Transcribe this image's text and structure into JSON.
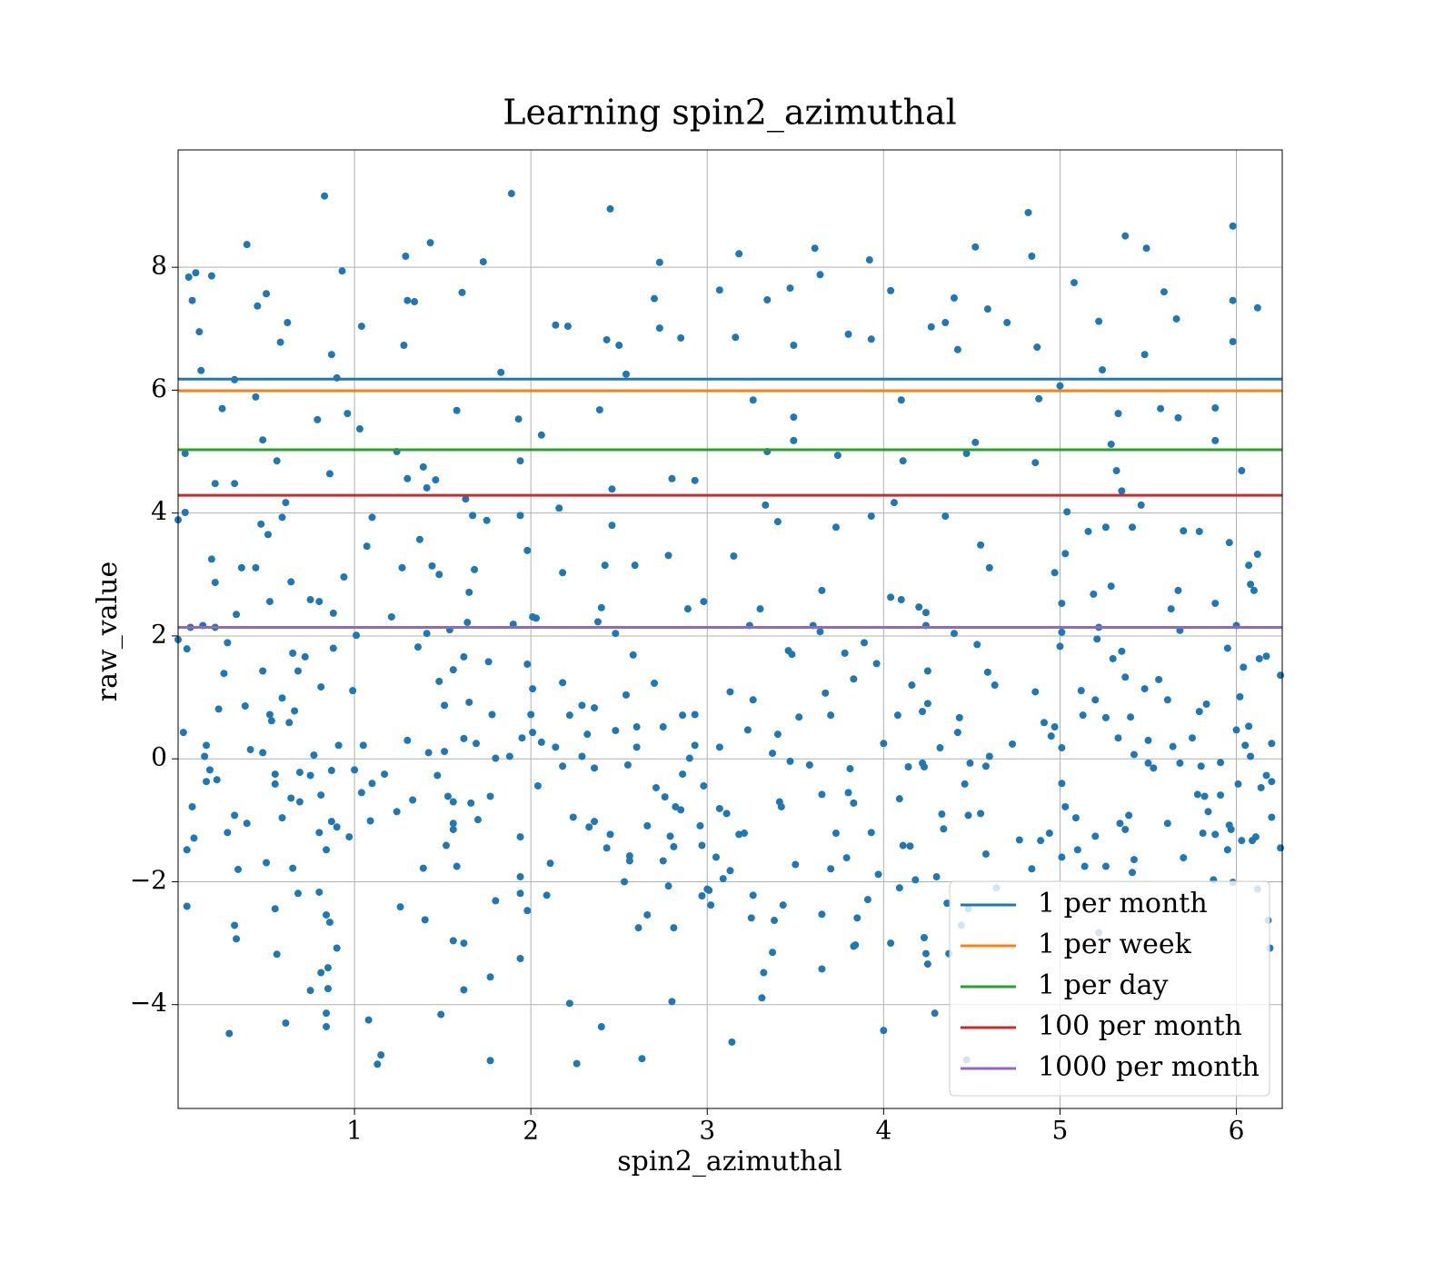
{
  "chart_data": {
    "type": "scatter",
    "title": "Learning spin2_azimuthal",
    "x_label": "spin2_azimuthal",
    "y_label": "raw_value",
    "xlim": [
      0,
      6.26
    ],
    "ylim": [
      -5.69,
      9.91
    ],
    "xticks": [
      1,
      2,
      3,
      4,
      5,
      6
    ],
    "yticks": [
      {
        "value": -4,
        "label": "−4"
      },
      {
        "value": -2,
        "label": "−2"
      },
      0,
      2,
      4,
      6,
      8
    ],
    "grid": true,
    "legend": "lower right",
    "series": [
      {
        "color": "#1f77b4",
        "x": [
          0.83,
          1.89,
          2.45,
          4.82,
          5.98,
          0.39,
          1.29,
          1.43,
          1.73,
          2.73,
          3.18,
          3.61,
          3.92,
          4.52,
          5.37,
          5.49,
          4.84,
          0.06,
          0.1,
          0.19,
          0.93,
          0.5,
          1.61,
          3.07,
          3.47,
          3.64,
          4.04,
          5.08,
          5.59,
          5.98,
          6.12,
          0.08,
          0.45,
          1.3,
          1.34,
          2.7,
          3.34,
          4.4,
          5.22,
          5.66,
          4.7,
          0.12,
          0.62,
          1.04,
          2.14,
          2.21,
          2.73,
          3.49,
          3.8,
          4.27,
          4.35,
          4.59,
          5.98,
          0.58,
          1.28,
          2.43,
          2.5,
          2.85,
          3.16,
          3.93,
          4.42,
          4.87,
          0.87,
          0.13,
          0.9,
          0.32,
          1.83,
          2.54,
          5.0,
          5.48,
          5.24,
          0.25,
          0.44,
          0.96,
          1.58,
          2.39,
          3.26,
          3.49,
          4.1,
          4.88,
          5.33,
          5.57,
          5.88,
          5.67,
          0.79,
          1.93,
          1.03,
          0.48,
          2.06,
          3.49,
          5.29,
          4.52,
          5.88,
          0.04,
          1.24,
          3.34,
          3.74,
          4.47,
          0.56,
          1.94,
          4.11,
          4.86,
          6.03,
          0.86,
          1.39,
          0.21,
          0.32,
          1.3,
          1.41,
          1.46,
          2.8,
          2.93,
          5.32,
          2.46,
          5.35,
          0.0,
          0.04,
          0.61,
          1.63,
          2.16,
          3.33,
          4.06,
          4.35,
          5.04,
          5.46,
          0.59,
          1.1,
          1.67,
          1.75,
          1.94,
          3.93,
          0.47,
          2.46,
          3.4,
          3.73,
          5.16,
          5.26,
          5.7,
          5.79,
          0.51,
          1.37,
          1.98,
          1.07,
          4.55,
          5.03,
          5.41,
          5.96,
          6.12,
          0.19,
          2.78,
          3.15,
          1.44,
          1.68,
          4.6,
          6.07,
          0.36,
          0.44,
          1.27,
          2.42,
          2.59,
          0.21,
          0.64,
          0.94,
          4.97,
          1.48,
          2.18,
          5.29,
          6.08,
          1.65,
          3.65,
          5.67,
          6.1,
          4.04,
          5.19,
          5.88,
          0.52,
          0.75,
          0.8,
          2.4,
          3.3,
          5.01,
          4.2,
          4.1,
          0.88,
          0.33,
          2.89,
          2.98,
          1.21,
          2.01,
          2.03,
          5.63,
          4.24,
          0.14,
          0.07,
          0.21,
          1.64,
          2.38,
          1.9,
          3.6,
          4.24,
          5.22,
          5.68,
          6.0,
          3.24,
          1.41,
          1.54,
          3.64,
          4.4,
          5.01,
          1.01,
          2.48,
          0.0,
          0.05,
          0.28,
          0.88,
          1.36,
          1.76,
          3.89,
          4.53,
          5.0,
          5.35,
          5.95,
          3.48,
          3.78,
          5.3,
          6.13,
          6.17,
          0.65,
          0.72,
          1.62,
          2.58,
          1.98,
          3.46,
          5.21,
          0.26,
          0.48,
          1.56,
          4.25,
          6.04,
          6.25,
          5.37,
          3.96,
          0.68,
          3.83,
          5.12,
          5.56,
          5.83,
          4.59,
          1.48,
          2.18,
          2.7,
          4.16,
          4.63,
          0.99,
          0.38,
          0.59,
          0.81,
          2.01,
          3.13,
          3.67,
          4.86,
          5.48,
          6.02,
          0.23,
          2.54,
          3.26,
          4.25,
          5.2,
          5.61,
          5.79,
          0.52,
          0.66,
          1.51,
          1.65,
          2.29,
          2.36,
          2.86,
          2.93,
          3.7,
          4.08,
          4.43,
          4.91,
          5.13,
          5.26,
          5.4,
          2.22,
          2.0,
          0.53,
          0.63,
          1.78,
          3.52,
          4.22,
          5.33,
          6.0,
          6.07,
          0.03,
          2.01,
          2.32,
          2.6,
          2.48,
          2.75,
          3.23,
          3.4,
          4.95,
          4.97,
          5.5,
          5.75,
          0.16,
          0.91,
          1.05,
          1.62,
          1.69,
          1.95,
          2.06,
          2.14,
          2.6,
          2.93,
          3.07,
          4.0,
          4.42,
          4.73,
          5.01,
          5.64,
          6.05,
          6.2,
          0.41,
          0.48,
          1.3,
          1.42,
          1.51,
          1.88,
          3.37,
          4.32,
          5.42,
          6.08,
          0.15,
          0.77,
          1.8,
          2.18,
          2.29,
          2.9,
          3.47,
          4.22,
          4.14,
          4.6,
          5.5,
          5.91,
          0.18,
          0.16,
          0.22,
          0.55,
          0.69,
          0.75,
          0.87,
          1.0,
          1.17,
          2.36,
          2.55,
          2.86,
          2.98,
          3.58,
          3.81,
          4.23,
          4.49,
          4.58,
          5.53,
          5.68,
          5.8,
          6.17,
          6.2,
          6.14,
          0.08,
          0.55,
          0.81,
          0.64,
          1.04,
          1.1,
          1.33,
          1.47,
          1.53,
          1.56,
          1.77,
          2.04,
          2.71,
          2.76,
          2.82,
          2.85,
          3.41,
          3.42,
          3.65,
          3.8,
          3.83,
          4.09,
          4.46,
          5.01,
          5.03,
          5.78,
          5.82,
          5.91,
          6.01,
          0.69,
          1.66,
          0.32,
          0.09,
          0.39,
          0.59,
          0.87,
          0.9,
          1.09,
          1.24,
          1.56,
          1.7,
          2.24,
          2.33,
          2.36,
          2.66,
          2.96,
          3.07,
          3.11,
          4.33,
          4.48,
          4.55,
          5.09,
          5.34,
          5.39,
          5.61,
          5.84,
          5.96,
          6.2,
          5.97,
          0.28,
          0.8,
          0.97,
          1.56,
          1.94,
          2.45,
          2.79,
          2.81,
          3.18,
          3.21,
          3.73,
          3.93,
          4.11,
          4.15,
          4.34,
          4.77,
          4.94,
          5.1,
          5.2,
          5.37,
          5.81,
          5.88,
          6.03,
          6.09,
          6.11,
          6.25,
          0.05,
          0.84,
          1.52,
          2.43,
          2.97,
          4.58,
          4.89,
          5.95,
          5.26,
          5.42,
          5.7,
          2.56,
          3.05,
          3.5,
          3.79,
          3.7,
          5.14,
          5.01,
          0.5,
          0.65,
          0.34,
          1.39,
          1.58,
          2.11,
          2.56,
          2.75,
          3.13,
          4.3,
          4.84,
          5.41,
          1.94,
          2.53,
          2.78,
          3.09,
          4.18,
          3.97,
          5.87,
          5.98,
          6.12,
          3.0,
          4.09,
          4.64,
          0.68,
          0.8,
          1.94,
          1.8,
          2.09,
          2.97,
          3.01,
          3.26,
          3.91,
          0.05,
          0.55,
          1.26,
          1.98,
          3.02,
          3.43,
          4.48,
          4.36,
          0.84,
          0.86,
          1.4,
          2.66,
          2.81,
          3.25,
          3.38,
          3.65,
          3.85,
          6.18,
          4.44,
          0.32,
          2.61,
          0.33,
          1.56,
          1.62,
          4.23,
          3.83,
          3.84,
          5.22,
          0.9,
          0.56,
          3.37,
          4.24,
          4.37,
          6.19,
          1.94,
          4.25,
          0.85,
          0.81,
          3.65,
          3.32,
          1.77,
          0.75,
          0.85,
          1.62,
          4.04,
          3.31,
          2.8,
          2.22,
          4.29,
          1.49,
          0.84,
          0.84,
          2.4,
          1.08,
          0.61,
          0.29,
          4.0,
          3.14,
          1.15,
          1.13,
          1.77,
          2.26,
          2.63,
          4.47
        ],
        "values": [
          9.16,
          9.2,
          8.95,
          8.89,
          8.67,
          8.37,
          8.18,
          8.4,
          8.09,
          8.08,
          8.22,
          8.31,
          8.12,
          8.33,
          8.51,
          8.31,
          8.18,
          7.84,
          7.91,
          7.86,
          7.94,
          7.57,
          7.59,
          7.63,
          7.66,
          7.88,
          7.62,
          7.75,
          7.6,
          7.46,
          7.34,
          7.46,
          7.37,
          7.46,
          7.44,
          7.49,
          7.47,
          7.5,
          7.12,
          7.16,
          7.1,
          6.95,
          7.1,
          7.04,
          7.06,
          7.04,
          7.01,
          6.73,
          6.91,
          7.03,
          7.1,
          7.32,
          6.79,
          6.78,
          6.73,
          6.82,
          6.73,
          6.85,
          6.86,
          6.83,
          6.66,
          6.7,
          6.58,
          6.32,
          6.2,
          6.17,
          6.29,
          6.26,
          6.07,
          6.58,
          6.33,
          5.7,
          5.89,
          5.62,
          5.67,
          5.68,
          5.84,
          5.56,
          5.84,
          5.86,
          5.62,
          5.7,
          5.71,
          5.55,
          5.52,
          5.53,
          5.37,
          5.19,
          5.27,
          5.18,
          5.12,
          5.15,
          5.18,
          4.97,
          5.0,
          5.0,
          4.94,
          4.97,
          4.85,
          4.85,
          4.85,
          4.82,
          4.69,
          4.64,
          4.75,
          4.48,
          4.48,
          4.56,
          4.41,
          4.54,
          4.56,
          4.53,
          4.69,
          4.39,
          4.36,
          3.89,
          4.01,
          4.17,
          4.23,
          4.08,
          4.13,
          4.17,
          3.95,
          4.02,
          4.13,
          3.93,
          3.93,
          3.96,
          3.88,
          3.96,
          3.95,
          3.82,
          3.8,
          3.86,
          3.77,
          3.7,
          3.77,
          3.71,
          3.7,
          3.65,
          3.57,
          3.39,
          3.46,
          3.48,
          3.34,
          3.77,
          3.52,
          3.33,
          3.25,
          3.31,
          3.3,
          3.14,
          3.08,
          3.11,
          3.15,
          3.11,
          3.11,
          3.11,
          3.15,
          3.15,
          2.87,
          2.88,
          2.96,
          3.03,
          3.0,
          3.03,
          2.81,
          2.84,
          2.71,
          2.74,
          2.74,
          2.74,
          2.63,
          2.68,
          2.53,
          2.56,
          2.59,
          2.56,
          2.46,
          2.44,
          2.53,
          2.47,
          2.59,
          2.37,
          2.35,
          2.44,
          2.56,
          2.31,
          2.31,
          2.29,
          2.44,
          2.38,
          2.17,
          2.14,
          2.14,
          2.22,
          2.23,
          2.19,
          2.17,
          2.17,
          2.14,
          2.09,
          2.17,
          2.17,
          2.04,
          2.1,
          2.07,
          2.04,
          2.06,
          2.01,
          2.04,
          1.94,
          1.79,
          1.89,
          1.8,
          1.82,
          1.58,
          1.89,
          1.86,
          1.83,
          1.75,
          1.8,
          1.7,
          1.72,
          1.63,
          1.63,
          1.67,
          1.72,
          1.66,
          1.66,
          1.69,
          1.54,
          1.76,
          1.95,
          1.39,
          1.43,
          1.45,
          1.43,
          1.49,
          1.36,
          1.33,
          1.55,
          1.43,
          1.3,
          1.11,
          1.29,
          0.89,
          1.41,
          1.26,
          1.24,
          1.23,
          1.2,
          1.2,
          1.11,
          0.86,
          0.99,
          1.17,
          1.14,
          1.09,
          1.07,
          1.09,
          1.14,
          1.01,
          0.81,
          1.04,
          0.96,
          0.9,
          0.96,
          0.96,
          0.77,
          0.72,
          0.78,
          0.87,
          0.92,
          0.87,
          0.83,
          0.71,
          0.72,
          0.71,
          0.71,
          0.67,
          0.59,
          0.71,
          0.67,
          0.68,
          0.71,
          0.72,
          0.62,
          0.59,
          0.72,
          0.68,
          0.77,
          0.34,
          0.47,
          0.53,
          0.43,
          0.43,
          0.4,
          0.52,
          0.46,
          0.52,
          0.47,
          0.4,
          0.37,
          0.52,
          0.3,
          0.34,
          0.22,
          0.22,
          0.22,
          0.33,
          0.25,
          0.34,
          0.27,
          0.19,
          0.19,
          0.22,
          0.19,
          0.25,
          0.43,
          0.24,
          0.18,
          0.2,
          0.22,
          0.25,
          0.15,
          0.1,
          0.3,
          0.1,
          0.12,
          0.04,
          0.09,
          0.18,
          0.07,
          0.04,
          0.04,
          0.06,
          0.01,
          -0.12,
          0.04,
          0.01,
          -0.04,
          -0.07,
          -0.13,
          0.04,
          -0.07,
          -0.06,
          -0.18,
          -0.37,
          -0.34,
          -0.25,
          -0.22,
          -0.27,
          -0.19,
          -0.18,
          -0.25,
          -0.15,
          -0.1,
          -0.25,
          -0.44,
          -0.1,
          -0.16,
          -0.13,
          -0.07,
          -0.12,
          -0.15,
          -0.07,
          -0.12,
          -0.27,
          -0.37,
          -0.47,
          -0.78,
          -0.41,
          -0.59,
          -0.64,
          -0.55,
          -0.4,
          -0.67,
          -0.27,
          -0.61,
          -0.7,
          -0.61,
          -0.44,
          -0.47,
          -0.62,
          -0.78,
          -0.83,
          -0.7,
          -0.78,
          -0.58,
          -0.55,
          -0.72,
          -0.65,
          -0.41,
          -0.4,
          -0.78,
          -0.58,
          -0.61,
          -0.59,
          -0.41,
          -0.7,
          -0.72,
          -0.92,
          -1.29,
          -1.05,
          -0.96,
          -1.02,
          -1.11,
          -1.01,
          -0.86,
          -1.05,
          -0.99,
          -0.95,
          -1.11,
          -1.02,
          -1.09,
          -1.09,
          -0.81,
          -0.89,
          -0.9,
          -0.92,
          -0.89,
          -0.96,
          -1.05,
          -0.92,
          -1.05,
          -0.86,
          -1.08,
          -0.95,
          -1.15,
          -1.2,
          -1.2,
          -1.27,
          -1.15,
          -1.27,
          -1.23,
          -1.26,
          -1.43,
          -1.23,
          -1.21,
          -1.21,
          -1.2,
          -1.41,
          -1.42,
          -1.14,
          -1.32,
          -1.21,
          -1.48,
          -1.26,
          -1.15,
          -1.21,
          -1.23,
          -1.33,
          -1.33,
          -1.27,
          -1.45,
          -1.48,
          -1.48,
          -1.41,
          -1.45,
          -1.41,
          -1.55,
          -1.33,
          -1.48,
          -1.75,
          -1.64,
          -1.61,
          -1.58,
          -1.6,
          -1.72,
          -1.61,
          -1.79,
          -1.75,
          -1.6,
          -1.69,
          -1.78,
          -1.8,
          -1.78,
          -1.75,
          -1.7,
          -1.66,
          -1.66,
          -1.82,
          -1.92,
          -1.79,
          -1.85,
          -1.92,
          -2.0,
          -2.07,
          -1.95,
          -1.97,
          -1.88,
          -1.97,
          -2.01,
          -2.12,
          -2.12,
          -2.1,
          -2.1,
          -2.19,
          -2.17,
          -2.19,
          -2.31,
          -2.22,
          -2.23,
          -2.14,
          -2.22,
          -2.29,
          -2.4,
          -2.44,
          -2.41,
          -2.47,
          -2.38,
          -2.38,
          -2.44,
          -2.35,
          -2.54,
          -2.66,
          -2.62,
          -2.54,
          -2.75,
          -2.59,
          -2.63,
          -2.53,
          -2.59,
          -2.63,
          -2.71,
          -2.71,
          -2.75,
          -2.93,
          -2.96,
          -3.0,
          -2.91,
          -3.05,
          -3.03,
          -2.83,
          -3.08,
          -3.18,
          -3.15,
          -3.17,
          -3.17,
          -3.08,
          -3.25,
          -3.34,
          -3.4,
          -3.48,
          -3.42,
          -3.48,
          -3.55,
          -3.77,
          -3.74,
          -3.76,
          -3.0,
          -3.89,
          -3.95,
          -3.98,
          -4.14,
          -4.16,
          -4.14,
          -4.36,
          -4.36,
          -4.25,
          -4.3,
          -4.47,
          -4.42,
          -4.61,
          -4.82,
          -4.97,
          -4.91,
          -4.96,
          -4.88,
          -4.9
        ]
      }
    ],
    "reference_lines": [
      {
        "name": "1 per month",
        "color": "#1f77b4",
        "value": 6.18
      },
      {
        "name": "1 per week",
        "color": "#ff7f0e",
        "value": 5.99
      },
      {
        "name": "1 per day",
        "color": "#2ca02c",
        "value": 5.03
      },
      {
        "name": "100 per month",
        "color": "#d62728",
        "value": 4.29
      },
      {
        "name": "1000 per month",
        "color": "#9467bd",
        "value": 2.14
      }
    ]
  }
}
